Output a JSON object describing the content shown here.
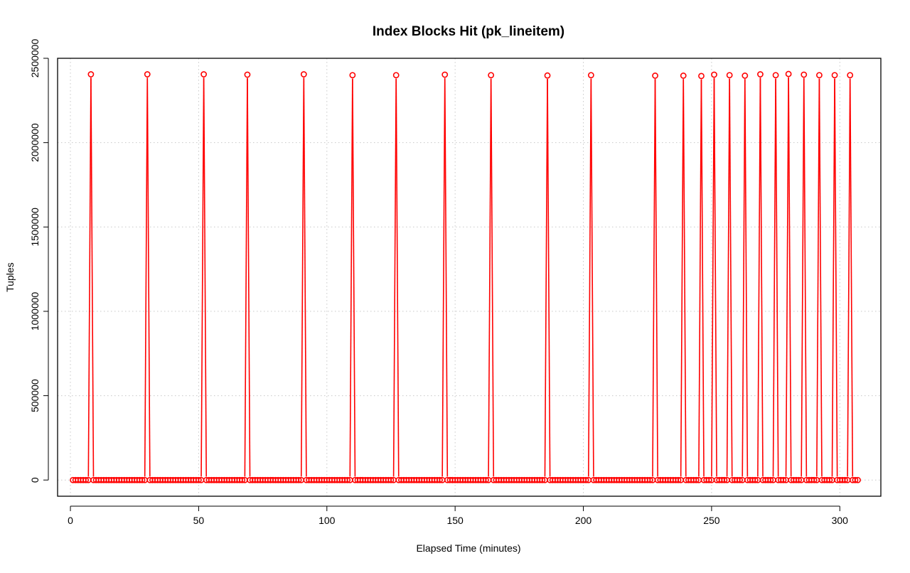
{
  "chart_data": {
    "type": "line",
    "title": "Index Blocks Hit (pk_lineitem)",
    "xlabel": "Elapsed Time (minutes)",
    "ylabel": "Tuples",
    "xlim": [
      -5,
      316
    ],
    "ylim": [
      -96000,
      2500000
    ],
    "x_ticks": [
      0,
      50,
      100,
      150,
      200,
      250,
      300
    ],
    "x_tick_labels": [
      "0",
      "50",
      "100",
      "150",
      "200",
      "250",
      "300"
    ],
    "y_ticks": [
      0,
      500000,
      1000000,
      1500000,
      2000000,
      2500000
    ],
    "y_tick_labels": [
      "0",
      "500000",
      "1000000",
      "1500000",
      "2000000",
      "2500000"
    ],
    "grid": true,
    "series_color": "#ff0000",
    "marker": "open-circle",
    "x_start": 1,
    "x_end": 307,
    "baseline_value": 0,
    "spikes": [
      {
        "x": 8,
        "y": 2405000
      },
      {
        "x": 30,
        "y": 2405000
      },
      {
        "x": 52,
        "y": 2405000
      },
      {
        "x": 69,
        "y": 2403000
      },
      {
        "x": 91,
        "y": 2405000
      },
      {
        "x": 110,
        "y": 2400000
      },
      {
        "x": 127,
        "y": 2400000
      },
      {
        "x": 146,
        "y": 2403000
      },
      {
        "x": 164,
        "y": 2400000
      },
      {
        "x": 186,
        "y": 2398000
      },
      {
        "x": 203,
        "y": 2400000
      },
      {
        "x": 228,
        "y": 2397000
      },
      {
        "x": 239,
        "y": 2397000
      },
      {
        "x": 246,
        "y": 2395000
      },
      {
        "x": 251,
        "y": 2403000
      },
      {
        "x": 257,
        "y": 2400000
      },
      {
        "x": 263,
        "y": 2397000
      },
      {
        "x": 269,
        "y": 2405000
      },
      {
        "x": 275,
        "y": 2400000
      },
      {
        "x": 280,
        "y": 2407000
      },
      {
        "x": 286,
        "y": 2403000
      },
      {
        "x": 292,
        "y": 2400000
      },
      {
        "x": 298,
        "y": 2400000
      },
      {
        "x": 304,
        "y": 2400000
      }
    ]
  }
}
